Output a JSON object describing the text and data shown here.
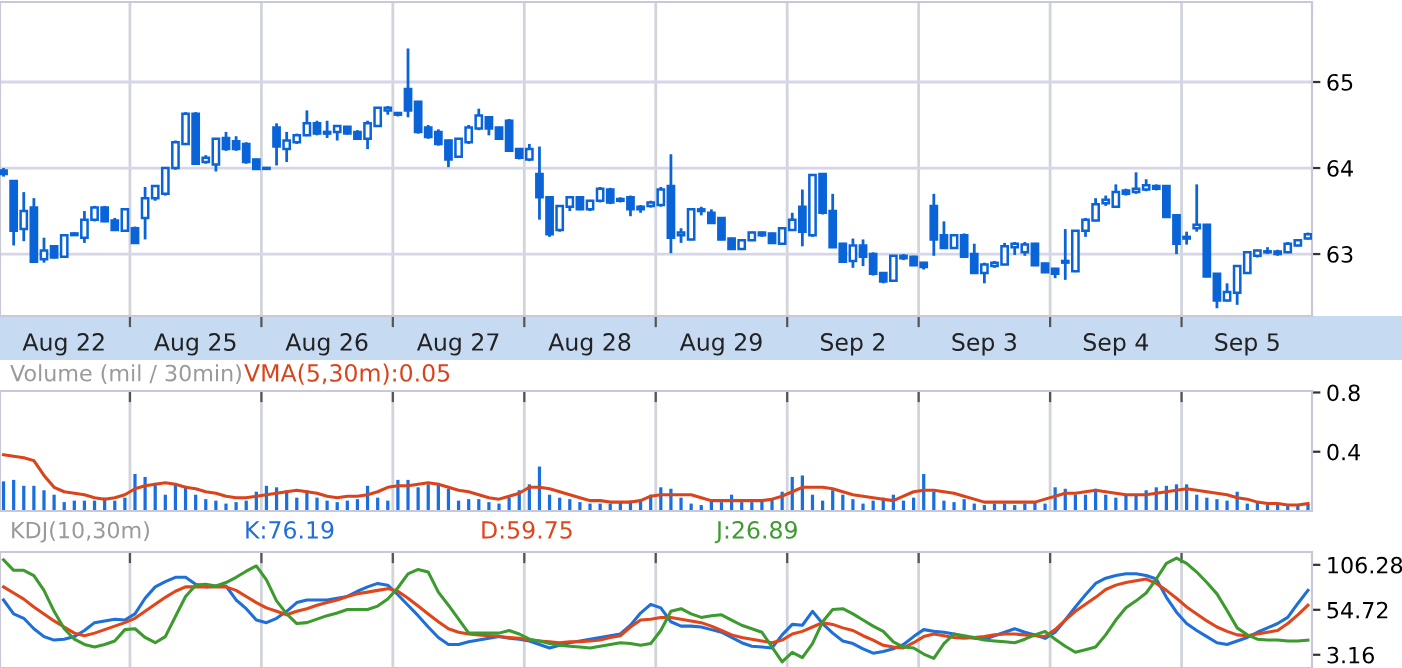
{
  "chart_data": [
    {
      "type": "candlestick",
      "color": "#0a64d8",
      "categories": [
        null,
        null,
        null,
        null,
        null,
        null,
        "Aug 22",
        null,
        null,
        null,
        null,
        null,
        null,
        null,
        null,
        null,
        null,
        null,
        null,
        "Aug 25",
        null,
        null,
        null,
        null,
        null,
        null,
        null,
        null,
        null,
        null,
        null,
        null,
        "Aug 26",
        null,
        null,
        null,
        null,
        null,
        null,
        null,
        null,
        null,
        null,
        null,
        null,
        "Aug 27",
        null,
        null,
        null,
        null,
        null,
        null,
        null,
        null,
        null,
        null,
        null,
        null,
        "Aug 28",
        null,
        null,
        null,
        null,
        null,
        null,
        null,
        null,
        null,
        null,
        null,
        null,
        "Aug 29",
        null,
        null,
        null,
        null,
        null,
        null,
        null,
        null,
        null,
        null,
        null,
        null,
        "Sep 2",
        null,
        null,
        null,
        null,
        null,
        null,
        null,
        null,
        null,
        null,
        null,
        null,
        "Sep 3",
        null,
        null,
        null,
        null,
        null,
        null,
        null,
        null,
        null,
        null,
        null,
        null,
        "Sep 4",
        null,
        null,
        null,
        null,
        null,
        null,
        null,
        null,
        null,
        null,
        null,
        null,
        "Sep 5",
        null,
        null,
        null,
        null,
        null,
        null
      ],
      "ohlc": [
        [
          63.97,
          64.0,
          63.9,
          63.93
        ],
        [
          63.85,
          63.85,
          63.1,
          63.27
        ],
        [
          63.29,
          63.72,
          63.15,
          63.5
        ],
        [
          63.54,
          63.65,
          62.9,
          62.91
        ],
        [
          62.94,
          63.19,
          62.9,
          63.04
        ],
        [
          63.09,
          63.1,
          62.95,
          62.96
        ],
        [
          62.97,
          63.23,
          62.96,
          63.22
        ],
        [
          63.22,
          63.25,
          63.21,
          63.24
        ],
        [
          63.19,
          63.5,
          63.13,
          63.4
        ],
        [
          63.4,
          63.56,
          63.38,
          63.54
        ],
        [
          63.54,
          63.56,
          63.37,
          63.38
        ],
        [
          63.39,
          63.42,
          63.27,
          63.28
        ],
        [
          63.27,
          63.52,
          63.26,
          63.52
        ],
        [
          63.3,
          63.32,
          63.12,
          63.13
        ],
        [
          63.42,
          63.78,
          63.17,
          63.65
        ],
        [
          63.65,
          63.8,
          63.62,
          63.79
        ],
        [
          63.7,
          64.0,
          63.68,
          64.0
        ],
        [
          64.0,
          64.32,
          63.98,
          64.3
        ],
        [
          64.28,
          64.65,
          64.27,
          64.63
        ],
        [
          64.63,
          64.65,
          64.04,
          64.05
        ],
        [
          64.07,
          64.15,
          64.05,
          64.12
        ],
        [
          64.04,
          64.35,
          63.96,
          64.34
        ],
        [
          64.35,
          64.42,
          64.2,
          64.22
        ],
        [
          64.31,
          64.37,
          64.2,
          64.22
        ],
        [
          64.28,
          64.3,
          64.05,
          64.07
        ],
        [
          64.1,
          64.11,
          63.98,
          63.99
        ],
        [
          64.0,
          64.01,
          63.98,
          63.99
        ],
        [
          64.47,
          64.52,
          64.03,
          64.25
        ],
        [
          64.22,
          64.42,
          64.07,
          64.32
        ],
        [
          64.3,
          64.4,
          64.28,
          64.38
        ],
        [
          64.38,
          64.67,
          64.37,
          64.52
        ],
        [
          64.52,
          64.55,
          64.38,
          64.4
        ],
        [
          64.42,
          64.55,
          64.35,
          64.4
        ],
        [
          64.42,
          64.5,
          64.32,
          64.49
        ],
        [
          64.48,
          64.49,
          64.39,
          64.4
        ],
        [
          64.42,
          64.44,
          64.33,
          64.34
        ],
        [
          64.34,
          64.55,
          64.22,
          64.52
        ],
        [
          64.49,
          64.71,
          64.48,
          64.7
        ],
        [
          64.67,
          64.72,
          64.62,
          64.7
        ],
        [
          64.64,
          64.65,
          64.6,
          64.62
        ],
        [
          64.92,
          65.39,
          64.59,
          64.67
        ],
        [
          64.77,
          64.78,
          64.4,
          64.42
        ],
        [
          64.47,
          64.5,
          64.34,
          64.36
        ],
        [
          64.42,
          64.45,
          64.26,
          64.28
        ],
        [
          64.32,
          64.33,
          64.01,
          64.1
        ],
        [
          64.13,
          64.35,
          64.12,
          64.34
        ],
        [
          64.3,
          64.5,
          64.28,
          64.47
        ],
        [
          64.46,
          64.69,
          64.44,
          64.61
        ],
        [
          64.59,
          64.6,
          64.38,
          64.46
        ],
        [
          64.47,
          64.48,
          64.33,
          64.34
        ],
        [
          64.55,
          64.57,
          64.19,
          64.2
        ],
        [
          64.22,
          64.23,
          64.1,
          64.12
        ],
        [
          64.1,
          64.28,
          64.08,
          64.22
        ],
        [
          63.93,
          64.25,
          63.4,
          63.66
        ],
        [
          63.66,
          63.67,
          63.2,
          63.23
        ],
        [
          63.28,
          63.57,
          63.26,
          63.56
        ],
        [
          63.55,
          63.67,
          63.5,
          63.66
        ],
        [
          63.66,
          63.67,
          63.51,
          63.52
        ],
        [
          63.52,
          63.63,
          63.5,
          63.62
        ],
        [
          63.62,
          63.78,
          63.6,
          63.76
        ],
        [
          63.75,
          63.77,
          63.58,
          63.6
        ],
        [
          63.64,
          63.66,
          63.6,
          63.62
        ],
        [
          63.66,
          63.68,
          63.44,
          63.52
        ],
        [
          63.55,
          63.57,
          63.48,
          63.52
        ],
        [
          63.56,
          63.62,
          63.54,
          63.6
        ],
        [
          63.57,
          63.78,
          63.55,
          63.75
        ],
        [
          63.79,
          64.16,
          63.01,
          63.19
        ],
        [
          63.22,
          63.3,
          63.13,
          63.25
        ],
        [
          63.17,
          63.53,
          63.16,
          63.52
        ],
        [
          63.52,
          63.55,
          63.45,
          63.5
        ],
        [
          63.48,
          63.52,
          63.35,
          63.36
        ],
        [
          63.42,
          63.43,
          63.16,
          63.17
        ],
        [
          63.18,
          63.19,
          63.05,
          63.06
        ],
        [
          63.06,
          63.17,
          63.05,
          63.16
        ],
        [
          63.16,
          63.26,
          63.15,
          63.25
        ],
        [
          63.25,
          63.26,
          63.2,
          63.22
        ],
        [
          63.24,
          63.25,
          63.12,
          63.13
        ],
        [
          63.12,
          63.31,
          63.11,
          63.3
        ],
        [
          63.28,
          63.48,
          63.27,
          63.4
        ],
        [
          63.55,
          63.75,
          63.09,
          63.26
        ],
        [
          63.22,
          63.93,
          63.2,
          63.92
        ],
        [
          63.93,
          63.94,
          63.46,
          63.48
        ],
        [
          63.5,
          63.7,
          63.07,
          63.08
        ],
        [
          63.12,
          63.13,
          62.9,
          62.91
        ],
        [
          62.92,
          63.18,
          62.84,
          63.1
        ],
        [
          63.1,
          63.17,
          62.86,
          62.97
        ],
        [
          63.0,
          63.02,
          62.75,
          62.77
        ],
        [
          62.78,
          62.79,
          62.66,
          62.68
        ],
        [
          62.69,
          62.99,
          62.68,
          62.98
        ],
        [
          62.98,
          63.0,
          62.93,
          62.95
        ],
        [
          62.97,
          62.98,
          62.86,
          62.87
        ],
        [
          62.9,
          62.91,
          62.82,
          62.85
        ],
        [
          63.56,
          63.7,
          62.98,
          63.17
        ],
        [
          63.22,
          63.38,
          63.06,
          63.07
        ],
        [
          63.07,
          63.23,
          63.06,
          63.22
        ],
        [
          63.22,
          63.24,
          62.96,
          62.97
        ],
        [
          63.0,
          63.12,
          62.77,
          62.78
        ],
        [
          62.78,
          62.9,
          62.66,
          62.88
        ],
        [
          62.86,
          62.92,
          62.84,
          62.9
        ],
        [
          62.88,
          63.13,
          62.87,
          63.09
        ],
        [
          63.08,
          63.14,
          62.99,
          63.12
        ],
        [
          63.02,
          63.14,
          62.98,
          63.11
        ],
        [
          63.12,
          63.13,
          62.86,
          62.87
        ],
        [
          62.89,
          62.9,
          62.78,
          62.79
        ],
        [
          62.83,
          62.84,
          62.72,
          62.77
        ],
        [
          62.9,
          63.29,
          62.7,
          62.92
        ],
        [
          62.8,
          63.28,
          62.79,
          63.27
        ],
        [
          63.27,
          63.42,
          63.2,
          63.4
        ],
        [
          63.39,
          63.65,
          63.38,
          63.58
        ],
        [
          63.59,
          63.68,
          63.56,
          63.63
        ],
        [
          63.55,
          63.81,
          63.54,
          63.72
        ],
        [
          63.74,
          63.76,
          63.68,
          63.7
        ],
        [
          63.72,
          63.95,
          63.7,
          63.76
        ],
        [
          63.75,
          63.87,
          63.73,
          63.8
        ],
        [
          63.79,
          63.81,
          63.74,
          63.76
        ],
        [
          63.79,
          63.8,
          63.42,
          63.43
        ],
        [
          63.45,
          63.46,
          63.0,
          63.12
        ],
        [
          63.2,
          63.26,
          63.11,
          63.18
        ],
        [
          63.3,
          63.81,
          63.26,
          63.34
        ],
        [
          63.34,
          63.35,
          62.73,
          62.74
        ],
        [
          62.77,
          62.78,
          62.37,
          62.46
        ],
        [
          62.46,
          62.66,
          62.45,
          62.56
        ],
        [
          62.55,
          62.87,
          62.41,
          62.86
        ],
        [
          62.78,
          63.03,
          62.77,
          63.02
        ],
        [
          62.98,
          63.05,
          62.96,
          63.04
        ],
        [
          63.02,
          63.08,
          63.0,
          63.03
        ],
        [
          63.03,
          63.05,
          62.98,
          63.0
        ],
        [
          63.02,
          63.14,
          63.01,
          63.12
        ],
        [
          63.1,
          63.17,
          63.09,
          63.16
        ],
        [
          63.18,
          63.25,
          63.17,
          63.23
        ]
      ],
      "ylim": [
        62.28,
        65.93
      ],
      "yticks": [
        63,
        64,
        65
      ],
      "grid": true
    },
    {
      "type": "bar",
      "title": "Volume (mil / 30min)",
      "grid": "x",
      "tick_labels": "y",
      "legend": "top left",
      "categories": [
        null,
        null,
        null,
        null,
        null,
        null,
        null,
        null,
        null,
        null,
        null,
        null,
        null,
        null,
        null,
        null,
        null,
        null,
        null,
        null,
        null,
        null,
        null,
        null,
        null,
        null,
        null,
        null,
        null,
        null,
        null,
        null,
        null,
        null,
        null,
        null,
        null,
        null,
        null,
        null,
        null,
        null,
        null,
        null,
        null,
        null,
        null,
        null,
        null,
        null,
        null,
        null,
        null,
        null,
        null,
        null,
        null,
        null,
        null,
        null,
        null,
        null,
        null,
        null,
        null,
        null,
        null,
        null,
        null,
        null,
        null,
        null,
        null,
        null,
        null,
        null,
        null,
        null,
        null,
        null,
        null,
        null,
        null,
        null,
        null,
        null,
        null,
        null,
        null,
        null,
        null,
        null,
        null,
        null,
        null,
        null,
        null,
        null,
        null,
        null,
        null,
        null,
        null,
        null,
        null,
        null,
        null,
        null,
        null,
        null,
        null,
        null,
        null,
        null,
        null,
        null,
        null,
        null,
        null,
        null,
        null,
        null,
        null,
        null,
        null,
        null,
        null,
        null,
        null,
        null
      ],
      "series": [
        {
          "type": "bar",
          "color": "#1a6fdf",
          "values": [
            0.2,
            0.21,
            0.17,
            0.17,
            0.14,
            0.11,
            0.06,
            0.07,
            0.07,
            0.07,
            0.09,
            0.07,
            0.09,
            0.25,
            0.23,
            0.19,
            0.11,
            0.18,
            0.17,
            0.11,
            0.08,
            0.07,
            0.05,
            0.06,
            0.07,
            0.13,
            0.17,
            0.16,
            0.14,
            0.09,
            0.14,
            0.09,
            0.07,
            0.06,
            0.07,
            0.08,
            0.17,
            0.09,
            0.07,
            0.21,
            0.21,
            0.16,
            0.18,
            0.19,
            0.15,
            0.07,
            0.08,
            0.08,
            0.06,
            0.05,
            0.09,
            0.14,
            0.18,
            0.3,
            0.11,
            0.09,
            0.08,
            0.06,
            0.05,
            0.05,
            0.05,
            0.06,
            0.07,
            0.08,
            0.11,
            0.16,
            0.15,
            0.09,
            0.05,
            0.04,
            0.08,
            0.06,
            0.11,
            0.06,
            0.06,
            0.07,
            0.08,
            0.13,
            0.23,
            0.24,
            0.11,
            0.07,
            0.14,
            0.11,
            0.08,
            0.05,
            0.07,
            0.09,
            0.11,
            0.07,
            0.09,
            0.25,
            0.13,
            0.07,
            0.06,
            0.08,
            0.05,
            0.04,
            0.05,
            0.05,
            0.04,
            0.05,
            0.06,
            0.05,
            0.16,
            0.15,
            0.11,
            0.11,
            0.15,
            0.11,
            0.09,
            0.11,
            0.11,
            0.14,
            0.16,
            0.17,
            0.18,
            0.18,
            0.11,
            0.09,
            0.08,
            0.07,
            0.13,
            0.05,
            0.06,
            0.04,
            0.05,
            0.04,
            0.04,
            0.05
          ]
        },
        {
          "type": "line",
          "name": "VMA(5,30m):0.05",
          "color": "#d9441c",
          "values": [
            0.38,
            0.37,
            0.36,
            0.34,
            0.24,
            0.16,
            0.13,
            0.12,
            0.11,
            0.09,
            0.08,
            0.09,
            0.11,
            0.15,
            0.17,
            0.18,
            0.19,
            0.18,
            0.16,
            0.15,
            0.13,
            0.12,
            0.1,
            0.09,
            0.09,
            0.1,
            0.11,
            0.12,
            0.13,
            0.14,
            0.13,
            0.12,
            0.1,
            0.09,
            0.1,
            0.1,
            0.11,
            0.13,
            0.16,
            0.17,
            0.17,
            0.18,
            0.19,
            0.18,
            0.16,
            0.14,
            0.13,
            0.11,
            0.09,
            0.08,
            0.1,
            0.12,
            0.16,
            0.16,
            0.15,
            0.13,
            0.11,
            0.09,
            0.07,
            0.07,
            0.06,
            0.06,
            0.06,
            0.07,
            0.1,
            0.11,
            0.11,
            0.11,
            0.11,
            0.09,
            0.07,
            0.07,
            0.07,
            0.07,
            0.07,
            0.07,
            0.08,
            0.1,
            0.13,
            0.16,
            0.16,
            0.16,
            0.15,
            0.13,
            0.11,
            0.1,
            0.09,
            0.08,
            0.07,
            0.1,
            0.13,
            0.14,
            0.14,
            0.13,
            0.12,
            0.1,
            0.08,
            0.06,
            0.06,
            0.06,
            0.06,
            0.06,
            0.06,
            0.08,
            0.1,
            0.12,
            0.12,
            0.13,
            0.14,
            0.13,
            0.12,
            0.11,
            0.11,
            0.11,
            0.12,
            0.13,
            0.14,
            0.15,
            0.14,
            0.13,
            0.12,
            0.11,
            0.09,
            0.08,
            0.06,
            0.05,
            0.05,
            0.04,
            0.04,
            0.05
          ]
        }
      ],
      "ylim": [
        0,
        0.81
      ],
      "yticks": [
        0.4,
        0.8
      ]
    },
    {
      "type": "line",
      "title": "KDJ(10,30m)",
      "grid": "x",
      "tick_labels": "y",
      "legend": "top left",
      "categories": [
        null,
        null,
        null,
        null,
        null,
        null,
        null,
        null,
        null,
        null,
        null,
        null,
        null,
        null,
        null,
        null,
        null,
        null,
        null,
        null,
        null,
        null,
        null,
        null,
        null,
        null,
        null,
        null,
        null,
        null,
        null,
        null,
        null,
        null,
        null,
        null,
        null,
        null,
        null,
        null,
        null,
        null,
        null,
        null,
        null,
        null,
        null,
        null,
        null,
        null,
        null,
        null,
        null,
        null,
        null,
        null,
        null,
        null,
        null,
        null,
        null,
        null,
        null,
        null,
        null,
        null,
        null,
        null,
        null,
        null,
        null,
        null,
        null,
        null,
        null,
        null,
        null,
        null,
        null,
        null,
        null,
        null,
        null,
        null,
        null,
        null,
        null,
        null,
        null,
        null,
        null,
        null,
        null,
        null,
        null,
        null,
        null,
        null,
        null,
        null,
        null,
        null,
        null,
        null,
        null,
        null,
        null,
        null,
        null,
        null,
        null,
        null,
        null,
        null,
        null,
        null,
        null,
        null,
        null,
        null,
        null,
        null,
        null,
        null,
        null,
        null,
        null,
        null,
        null,
        null
      ],
      "series": [
        {
          "name": "K:76.19",
          "color": "#1f6fd8",
          "values": [
            66,
            50,
            45,
            33,
            24,
            20,
            21,
            24,
            31,
            40,
            42,
            44,
            43,
            50,
            68,
            81,
            87,
            92,
            92,
            84,
            81,
            82,
            82,
            66,
            56,
            43,
            40,
            45,
            53,
            63,
            66,
            66,
            66,
            68,
            70,
            76,
            81,
            85,
            83,
            72,
            60,
            48,
            35,
            23,
            15,
            15,
            18,
            20,
            22,
            24,
            22,
            21,
            19,
            15,
            11,
            14,
            17,
            19,
            21,
            23,
            25,
            27,
            37,
            51,
            61,
            57,
            41,
            36,
            36,
            35,
            32,
            29,
            23,
            17,
            13,
            12,
            11,
            26,
            38,
            37,
            53,
            39,
            28,
            19,
            16,
            10,
            5,
            7,
            10,
            15,
            24,
            32,
            30,
            29,
            27,
            24,
            22,
            21,
            25,
            29,
            33,
            29,
            26,
            22,
            29,
            43,
            58,
            72,
            85,
            91,
            94,
            96,
            96,
            94,
            90,
            69,
            52,
            39,
            31,
            24,
            17,
            15,
            19,
            23,
            29,
            34,
            39,
            46,
            62,
            77
          ]
        },
        {
          "name": "D:59.75",
          "color": "#e0451b",
          "values": [
            81,
            74,
            67,
            58,
            50,
            42,
            35,
            28,
            25,
            28,
            32,
            36,
            40,
            45,
            53,
            61,
            69,
            76,
            81,
            81,
            81,
            81,
            81,
            77,
            70,
            63,
            57,
            53,
            49,
            53,
            56,
            60,
            63,
            66,
            70,
            73,
            75,
            77,
            79,
            76,
            68,
            59,
            50,
            41,
            33,
            29,
            27,
            26,
            25,
            24,
            23,
            22,
            20,
            19,
            18,
            17,
            18,
            18,
            19,
            20,
            23,
            25,
            35,
            43,
            44,
            46,
            46,
            44,
            42,
            40,
            36,
            31,
            26,
            23,
            21,
            19,
            17,
            20,
            27,
            30,
            35,
            40,
            38,
            34,
            31,
            25,
            20,
            14,
            12,
            11,
            17,
            24,
            27,
            25,
            23,
            22,
            23,
            24,
            26,
            27,
            27,
            26,
            25,
            24,
            32,
            43,
            53,
            61,
            69,
            78,
            83,
            86,
            88,
            90,
            85,
            77,
            68,
            58,
            50,
            42,
            35,
            30,
            26,
            25,
            27,
            29,
            31,
            39,
            49,
            60
          ]
        },
        {
          "name": "J:26.89",
          "color": "#3c9a2e",
          "values": [
            112,
            100,
            100,
            94,
            77,
            53,
            33,
            21,
            15,
            12,
            15,
            19,
            32,
            33,
            23,
            17,
            24,
            47,
            70,
            83,
            84,
            82,
            86,
            92,
            99,
            105,
            89,
            65,
            50,
            39,
            40,
            44,
            48,
            51,
            55,
            55,
            55,
            59,
            67,
            80,
            96,
            101,
            98,
            75,
            60,
            44,
            28,
            28,
            28,
            28,
            31,
            27,
            21,
            19,
            16,
            14,
            13,
            12,
            11,
            13,
            15,
            17,
            16,
            14,
            16,
            31,
            53,
            56,
            50,
            46,
            48,
            49,
            43,
            37,
            33,
            29,
            12,
            -5,
            6,
            0,
            16,
            41,
            55,
            56,
            50,
            43,
            36,
            30,
            18,
            12,
            11,
            4,
            -1,
            16,
            27,
            25,
            23,
            20,
            19,
            18,
            17,
            21,
            26,
            30,
            21,
            13,
            6,
            9,
            12,
            26,
            43,
            57,
            65,
            74,
            90,
            108,
            114,
            108,
            98,
            86,
            73,
            54,
            34,
            26,
            21,
            20,
            20,
            19,
            19,
            20
          ]
        }
      ],
      "ylim": [
        -12,
        121
      ],
      "yticks": [
        3.16,
        54.72,
        106.28
      ]
    }
  ]
}
